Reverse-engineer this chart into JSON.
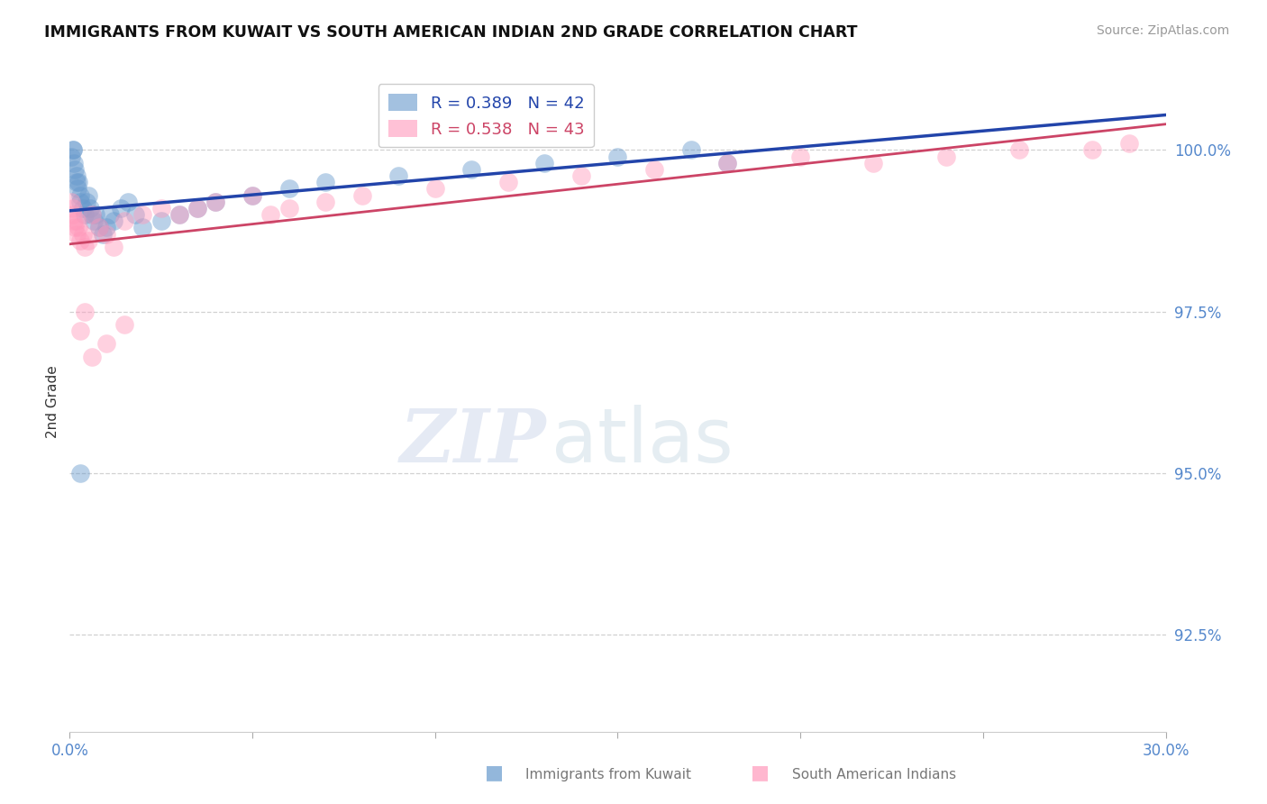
{
  "title": "IMMIGRANTS FROM KUWAIT VS SOUTH AMERICAN INDIAN 2ND GRADE CORRELATION CHART",
  "source": "Source: ZipAtlas.com",
  "ylabel": "2nd Grade",
  "xlim": [
    0.0,
    30.0
  ],
  "ylim": [
    91.0,
    101.2
  ],
  "ytick_vals": [
    92.5,
    95.0,
    97.5,
    100.0
  ],
  "ytick_labels": [
    "92.5%",
    "95.0%",
    "97.5%",
    "100.0%"
  ],
  "xtick_vals": [
    0.0,
    5.0,
    10.0,
    15.0,
    20.0,
    25.0,
    30.0
  ],
  "xtick_labels": [
    "0.0%",
    "",
    "",
    "",
    "",
    "",
    "30.0%"
  ],
  "legend_label1": "Immigrants from Kuwait",
  "legend_label2": "South American Indians",
  "R1": 0.389,
  "N1": 42,
  "R2": 0.538,
  "N2": 43,
  "blue_color": "#6699CC",
  "pink_color": "#FF99BB",
  "blue_line_color": "#2244AA",
  "pink_line_color": "#CC4466",
  "blue_x": [
    0.05,
    0.08,
    0.1,
    0.12,
    0.15,
    0.18,
    0.2,
    0.22,
    0.25,
    0.28,
    0.3,
    0.35,
    0.4,
    0.45,
    0.5,
    0.55,
    0.6,
    0.65,
    0.7,
    0.8,
    0.9,
    1.0,
    1.1,
    1.2,
    1.4,
    1.6,
    1.8,
    2.0,
    2.5,
    3.0,
    3.5,
    4.0,
    5.0,
    6.0,
    7.0,
    9.0,
    11.0,
    13.0,
    15.0,
    17.0,
    18.0,
    0.3
  ],
  "blue_y": [
    99.9,
    100.0,
    100.0,
    99.8,
    99.7,
    99.6,
    99.5,
    99.4,
    99.5,
    99.3,
    99.2,
    99.1,
    99.0,
    99.2,
    99.3,
    99.1,
    99.0,
    98.9,
    99.0,
    98.8,
    98.7,
    98.8,
    99.0,
    98.9,
    99.1,
    99.2,
    99.0,
    98.8,
    98.9,
    99.0,
    99.1,
    99.2,
    99.3,
    99.4,
    99.5,
    99.6,
    99.7,
    99.8,
    99.9,
    100.0,
    99.8,
    95.0
  ],
  "pink_x": [
    0.05,
    0.08,
    0.1,
    0.12,
    0.15,
    0.18,
    0.2,
    0.25,
    0.3,
    0.35,
    0.4,
    0.5,
    0.6,
    0.8,
    1.0,
    1.2,
    1.5,
    2.0,
    2.5,
    3.0,
    3.5,
    4.0,
    5.0,
    5.5,
    6.0,
    7.0,
    8.0,
    10.0,
    12.0,
    14.0,
    16.0,
    18.0,
    20.0,
    22.0,
    24.0,
    26.0,
    28.0,
    29.0,
    0.3,
    0.4,
    0.6,
    1.0,
    1.5
  ],
  "pink_y": [
    99.2,
    99.0,
    99.1,
    98.9,
    98.8,
    98.7,
    98.9,
    98.8,
    98.6,
    98.7,
    98.5,
    98.6,
    99.0,
    98.8,
    98.7,
    98.5,
    98.9,
    99.0,
    99.1,
    99.0,
    99.1,
    99.2,
    99.3,
    99.0,
    99.1,
    99.2,
    99.3,
    99.4,
    99.5,
    99.6,
    99.7,
    99.8,
    99.9,
    99.8,
    99.9,
    100.0,
    100.0,
    100.1,
    97.2,
    97.5,
    96.8,
    97.0,
    97.3
  ],
  "watermark_zip": "ZIP",
  "watermark_atlas": "atlas",
  "grid_color": "#CCCCCC",
  "background_color": "#FFFFFF",
  "tick_label_color": "#5588CC",
  "ytick_label_color": "#5588CC"
}
